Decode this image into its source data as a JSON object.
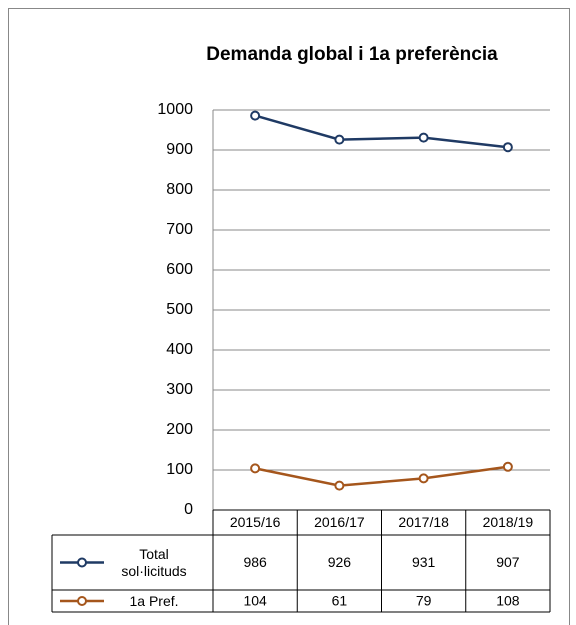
{
  "chart_data": {
    "type": "line",
    "title": "Demanda global i 1a  preferència",
    "categories": [
      "2015/16",
      "2016/17",
      "2017/18",
      "2018/19"
    ],
    "series": [
      {
        "name": "Total sol·licituds",
        "color": "#1f3a64",
        "values": [
          986,
          926,
          931,
          907
        ]
      },
      {
        "name": "1a Pref.",
        "color": "#a5561c",
        "values": [
          104,
          61,
          79,
          108
        ]
      }
    ],
    "ylim": [
      0,
      1000
    ],
    "yticks": [
      0,
      100,
      200,
      300,
      400,
      500,
      600,
      700,
      800,
      900,
      1000
    ],
    "grid": true,
    "data_table": true
  }
}
